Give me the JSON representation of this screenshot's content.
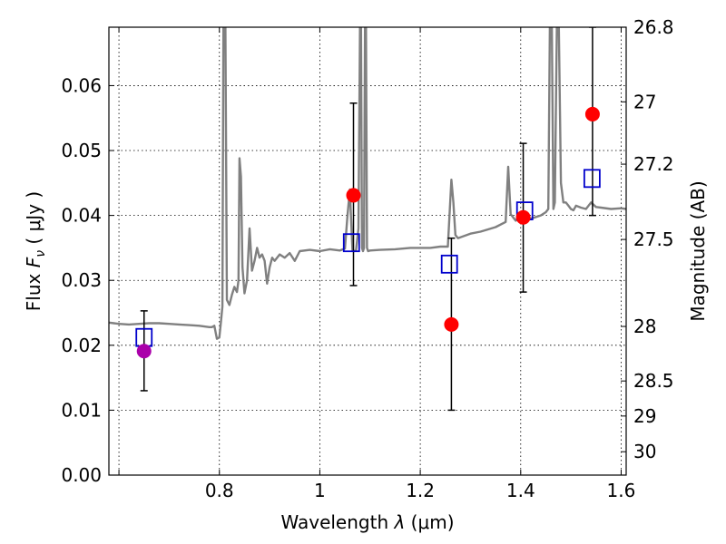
{
  "chart_data": {
    "type": "scatter",
    "title": "",
    "xlabel_prefix": "Wavelength  ",
    "xlabel_symbol": "λ",
    "xlabel_unit": " (μm)",
    "ylabel_prefix": "Flux  ",
    "ylabel_symbol": "F",
    "ylabel_subscript": "ν",
    "ylabel_unit": "  ( μJy )",
    "y2label": "Magnitude (AB)",
    "xlim": [
      0.58,
      1.61
    ],
    "ylim": [
      0.0,
      0.069
    ],
    "grid": true,
    "x_ticks": [
      {
        "value": 0.6,
        "label": ""
      },
      {
        "value": 0.8,
        "label": "0.8"
      },
      {
        "value": 1.0,
        "label": "1"
      },
      {
        "value": 1.2,
        "label": "1.2"
      },
      {
        "value": 1.4,
        "label": "1.4"
      },
      {
        "value": 1.6,
        "label": "1.6"
      }
    ],
    "y_ticks": [
      {
        "value": 0.0,
        "label": "0.00"
      },
      {
        "value": 0.01,
        "label": "0.01"
      },
      {
        "value": 0.02,
        "label": "0.02"
      },
      {
        "value": 0.03,
        "label": "0.03"
      },
      {
        "value": 0.04,
        "label": "0.04"
      },
      {
        "value": 0.05,
        "label": "0.05"
      },
      {
        "value": 0.06,
        "label": "0.06"
      }
    ],
    "y2_ticks": [
      {
        "flux": 0.0691,
        "label": "26.8"
      },
      {
        "flux": 0.0575,
        "label": "27"
      },
      {
        "flux": 0.0479,
        "label": "27.2"
      },
      {
        "flux": 0.0363,
        "label": "27.5"
      },
      {
        "flux": 0.0229,
        "label": "28"
      },
      {
        "flux": 0.0145,
        "label": "28.5"
      },
      {
        "flux": 0.0091,
        "label": "29"
      },
      {
        "flux": 0.0036,
        "label": "30"
      }
    ],
    "spectrum": {
      "color": "#808080",
      "x": [
        0.58,
        0.59,
        0.6,
        0.62,
        0.64,
        0.66,
        0.68,
        0.7,
        0.72,
        0.74,
        0.76,
        0.78,
        0.785,
        0.79,
        0.795,
        0.8,
        0.803,
        0.806,
        0.808,
        0.81,
        0.812,
        0.815,
        0.82,
        0.825,
        0.83,
        0.835,
        0.838,
        0.84,
        0.843,
        0.846,
        0.85,
        0.855,
        0.86,
        0.865,
        0.87,
        0.875,
        0.88,
        0.885,
        0.89,
        0.895,
        0.9,
        0.905,
        0.91,
        0.92,
        0.93,
        0.94,
        0.95,
        0.96,
        0.98,
        1.0,
        1.02,
        1.04,
        1.05,
        1.055,
        1.06,
        1.062,
        1.065,
        1.068,
        1.072,
        1.077,
        1.08,
        1.082,
        1.084,
        1.086,
        1.088,
        1.09,
        1.092,
        1.094,
        1.096,
        1.1,
        1.12,
        1.15,
        1.18,
        1.2,
        1.22,
        1.24,
        1.255,
        1.262,
        1.266,
        1.27,
        1.275,
        1.3,
        1.32,
        1.35,
        1.37,
        1.375,
        1.38,
        1.39,
        1.4,
        1.41,
        1.42,
        1.44,
        1.45,
        1.455,
        1.458,
        1.462,
        1.465,
        1.468,
        1.472,
        1.476,
        1.48,
        1.485,
        1.49,
        1.495,
        1.5,
        1.505,
        1.51,
        1.52,
        1.53,
        1.54,
        1.55,
        1.56,
        1.58,
        1.6,
        1.61
      ],
      "y": [
        0.0235,
        0.0234,
        0.0233,
        0.0232,
        0.0233,
        0.0234,
        0.0234,
        0.0233,
        0.0232,
        0.0231,
        0.023,
        0.0228,
        0.0228,
        0.023,
        0.021,
        0.0212,
        0.0235,
        0.026,
        0.069,
        0.069,
        0.069,
        0.027,
        0.0262,
        0.0278,
        0.029,
        0.0282,
        0.03,
        0.0488,
        0.046,
        0.032,
        0.028,
        0.03,
        0.038,
        0.0315,
        0.033,
        0.035,
        0.0335,
        0.034,
        0.033,
        0.0295,
        0.032,
        0.0335,
        0.033,
        0.034,
        0.0335,
        0.0342,
        0.033,
        0.0345,
        0.0347,
        0.0345,
        0.0348,
        0.0346,
        0.0349,
        0.04,
        0.044,
        0.04,
        0.0346,
        0.0345,
        0.0346,
        0.038,
        0.069,
        0.069,
        0.035,
        0.0345,
        0.035,
        0.069,
        0.069,
        0.035,
        0.0345,
        0.0346,
        0.0347,
        0.0348,
        0.035,
        0.035,
        0.035,
        0.0352,
        0.0352,
        0.0455,
        0.042,
        0.037,
        0.0365,
        0.0372,
        0.0375,
        0.0382,
        0.039,
        0.0475,
        0.0402,
        0.0392,
        0.0398,
        0.04,
        0.0395,
        0.04,
        0.0405,
        0.041,
        0.069,
        0.069,
        0.041,
        0.042,
        0.069,
        0.069,
        0.045,
        0.042,
        0.042,
        0.0415,
        0.041,
        0.0408,
        0.0415,
        0.0412,
        0.041,
        0.042,
        0.0413,
        0.0412,
        0.041,
        0.0411,
        0.041
      ]
    },
    "model_points": {
      "color": "#0000cc",
      "x": [
        0.65,
        1.063,
        1.258,
        1.408,
        1.542
      ],
      "y": [
        0.0212,
        0.0358,
        0.0325,
        0.0407,
        0.0457
      ]
    },
    "observed_points": {
      "colors": [
        "#aa00aa",
        "#ff0000",
        "#ff0000",
        "#ff0000",
        "#ff0000"
      ],
      "x": [
        0.65,
        1.067,
        1.262,
        1.405,
        1.543
      ],
      "y": [
        0.0191,
        0.0431,
        0.0232,
        0.0397,
        0.0556
      ],
      "err_low": [
        0.013,
        0.0292,
        0.01,
        0.0282,
        0.04
      ],
      "err_high": [
        0.0253,
        0.0573,
        0.0365,
        0.0511,
        0.069
      ]
    }
  }
}
